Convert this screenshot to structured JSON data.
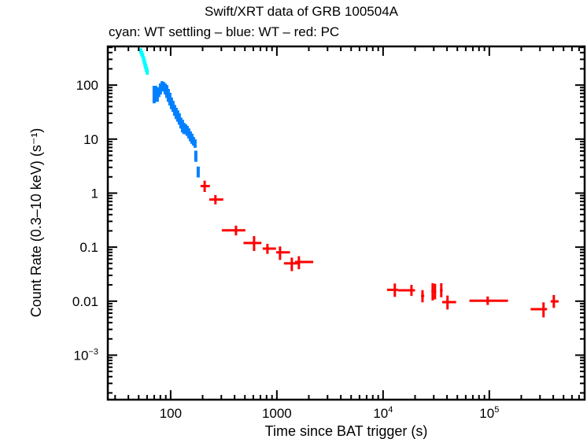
{
  "chart_data": {
    "type": "scatter",
    "title": "Swift/XRT data of GRB 100504A",
    "subtitle": "cyan: WT settling – blue: WT – red: PC",
    "xlabel": "Time since BAT trigger (s)",
    "ylabel": "Count Rate (0.3–10 keV) (s⁻¹)",
    "xscale": "log",
    "yscale": "log",
    "xlim": [
      25.6,
      790000
    ],
    "ylim": [
      0.00015,
      520
    ],
    "grid": false,
    "legend": "none (color key given in subtitle)",
    "x_ticks": [
      {
        "value": 100,
        "label": "100"
      },
      {
        "value": 1000,
        "label": "1000"
      },
      {
        "value": 10000,
        "label": "10",
        "sup": "4"
      },
      {
        "value": 100000,
        "label": "10",
        "sup": "5"
      }
    ],
    "y_ticks": [
      {
        "value": 100,
        "label": "100"
      },
      {
        "value": 10,
        "label": "10"
      },
      {
        "value": 1,
        "label": "1"
      },
      {
        "value": 0.1,
        "label": "0.1"
      },
      {
        "value": 0.01,
        "label": "0.01"
      },
      {
        "value": 0.001,
        "label": "10",
        "sup": "−3"
      }
    ],
    "series": [
      {
        "name": "WT settling",
        "color": "#00ffff",
        "points": [
          {
            "x": 52.3,
            "y": 426,
            "ylo": 380,
            "yhi": 480
          },
          {
            "x": 53.5,
            "y": 384,
            "ylo": 340,
            "yhi": 430
          },
          {
            "x": 54.6,
            "y": 348,
            "ylo": 310,
            "yhi": 390
          },
          {
            "x": 55.6,
            "y": 303,
            "ylo": 270,
            "yhi": 340
          },
          {
            "x": 56.5,
            "y": 275,
            "ylo": 245,
            "yhi": 310
          },
          {
            "x": 57.3,
            "y": 243,
            "ylo": 215,
            "yhi": 275
          },
          {
            "x": 58.2,
            "y": 222,
            "ylo": 195,
            "yhi": 250
          },
          {
            "x": 59.2,
            "y": 195,
            "ylo": 172,
            "yhi": 222
          },
          {
            "x": 60.2,
            "y": 177,
            "ylo": 155,
            "yhi": 200
          }
        ]
      },
      {
        "name": "WT",
        "color": "#0080ff",
        "points": [
          {
            "x": 69.9,
            "y": 66.8,
            "ylo": 46,
            "yhi": 97
          },
          {
            "x": 72.3,
            "y": 69.0,
            "ylo": 49,
            "yhi": 97
          },
          {
            "x": 74.8,
            "y": 66.8,
            "ylo": 49,
            "yhi": 91
          },
          {
            "x": 77.4,
            "y": 73.9,
            "ylo": 60,
            "yhi": 91
          },
          {
            "x": 80.1,
            "y": 84.5,
            "ylo": 67,
            "yhi": 107
          },
          {
            "x": 83.0,
            "y": 96.7,
            "ylo": 79,
            "yhi": 118
          },
          {
            "x": 85.8,
            "y": 93.5,
            "ylo": 76,
            "yhi": 114
          },
          {
            "x": 88.8,
            "y": 84.5,
            "ylo": 67,
            "yhi": 107
          },
          {
            "x": 91.9,
            "y": 76.4,
            "ylo": 58,
            "yhi": 100
          },
          {
            "x": 95.0,
            "y": 64.6,
            "ylo": 49,
            "yhi": 85
          },
          {
            "x": 98.3,
            "y": 54.6,
            "ylo": 42,
            "yhi": 72
          },
          {
            "x": 101.7,
            "y": 46.1,
            "ylo": 36,
            "yhi": 59
          },
          {
            "x": 105.2,
            "y": 40.3,
            "ylo": 32,
            "yhi": 51
          },
          {
            "x": 108.9,
            "y": 34.0,
            "ylo": 27,
            "yhi": 43
          },
          {
            "x": 112.7,
            "y": 29.8,
            "ylo": 23.5,
            "yhi": 38
          },
          {
            "x": 116.6,
            "y": 26.9,
            "ylo": 21,
            "yhi": 34
          },
          {
            "x": 120.6,
            "y": 23.5,
            "ylo": 18.5,
            "yhi": 30
          },
          {
            "x": 124.8,
            "y": 19.9,
            "ylo": 15.7,
            "yhi": 25
          },
          {
            "x": 129.2,
            "y": 17.4,
            "ylo": 13.3,
            "yhi": 22.8
          },
          {
            "x": 133.6,
            "y": 15.7,
            "ylo": 12.4,
            "yhi": 19.9
          },
          {
            "x": 138.3,
            "y": 15.2,
            "ylo": 12.3,
            "yhi": 18.8
          },
          {
            "x": 143.1,
            "y": 14.2,
            "ylo": 11.5,
            "yhi": 17.6
          },
          {
            "x": 148.0,
            "y": 12.8,
            "ylo": 10.3,
            "yhi": 15.8
          },
          {
            "x": 153.2,
            "y": 11.2,
            "ylo": 9.1,
            "yhi": 13.9
          },
          {
            "x": 158.5,
            "y": 10.2,
            "ylo": 8.2,
            "yhi": 12.6
          },
          {
            "x": 164.0,
            "y": 9.17,
            "ylo": 7.6,
            "yhi": 11.0
          },
          {
            "x": 169.7,
            "y": 8.29,
            "ylo": 6.9,
            "yhi": 9.9
          },
          {
            "x": 172.6,
            "y": 4.83,
            "ylo": 3.8,
            "yhi": 6.1,
            "xlo": 170,
            "xhi": 175
          },
          {
            "x": 181.7,
            "y": 2.47,
            "ylo": 1.95,
            "yhi": 3.1,
            "xlo": 178,
            "xhi": 186
          }
        ]
      },
      {
        "name": "PC",
        "color": "#ff0000",
        "points": [
          {
            "x": 209,
            "xlo": 191,
            "xhi": 234,
            "y": 1.35,
            "ylo": 1.05,
            "yhi": 1.7
          },
          {
            "x": 264,
            "xlo": 231,
            "xhi": 313,
            "y": 0.76,
            "ylo": 0.62,
            "yhi": 0.92
          },
          {
            "x": 412,
            "xlo": 303,
            "xhi": 505,
            "y": 0.205,
            "ylo": 0.165,
            "yhi": 0.25
          },
          {
            "x": 610,
            "xlo": 485,
            "xhi": 715,
            "y": 0.119,
            "ylo": 0.085,
            "yhi": 0.16
          },
          {
            "x": 815,
            "xlo": 735,
            "xhi": 982,
            "y": 0.094,
            "ylo": 0.075,
            "yhi": 0.115
          },
          {
            "x": 1071,
            "xlo": 983,
            "xhi": 1330,
            "y": 0.08,
            "ylo": 0.058,
            "yhi": 0.103
          },
          {
            "x": 1383,
            "xlo": 1166,
            "xhi": 1612,
            "y": 0.05,
            "ylo": 0.036,
            "yhi": 0.064
          },
          {
            "x": 1612,
            "xlo": 1480,
            "xhi": 2200,
            "y": 0.053,
            "ylo": 0.039,
            "yhi": 0.068
          },
          {
            "x": 12900,
            "xlo": 10900,
            "xhi": 13800,
            "y": 0.0162,
            "ylo": 0.012,
            "yhi": 0.0212
          },
          {
            "x": 18500,
            "xlo": 13800,
            "xhi": 20000,
            "y": 0.0159,
            "ylo": 0.0125,
            "yhi": 0.02
          },
          {
            "x": 23500,
            "xlo": 22800,
            "xhi": 24400,
            "y": 0.0125,
            "ylo": 0.0095,
            "yhi": 0.016
          },
          {
            "x": 29300,
            "xlo": 28500,
            "xhi": 30000,
            "y": 0.0152,
            "ylo": 0.0103,
            "yhi": 0.0215
          },
          {
            "x": 30800,
            "xlo": 30000,
            "xhi": 31700,
            "y": 0.015,
            "ylo": 0.0108,
            "yhi": 0.021
          },
          {
            "x": 35300,
            "xlo": 34300,
            "xhi": 36400,
            "y": 0.0159,
            "ylo": 0.0118,
            "yhi": 0.0215
          },
          {
            "x": 40400,
            "xlo": 36000,
            "xhi": 48700,
            "y": 0.0096,
            "ylo": 0.007,
            "yhi": 0.0127
          },
          {
            "x": 96600,
            "xlo": 65000,
            "xhi": 150000,
            "y": 0.0102,
            "ylo": 0.0085,
            "yhi": 0.0122
          },
          {
            "x": 324000,
            "xlo": 245000,
            "xhi": 350000,
            "y": 0.0071,
            "ylo": 0.005,
            "yhi": 0.0095
          },
          {
            "x": 405000,
            "xlo": 378000,
            "xhi": 450000,
            "y": 0.0099,
            "ylo": 0.0075,
            "yhi": 0.013
          }
        ]
      }
    ]
  }
}
